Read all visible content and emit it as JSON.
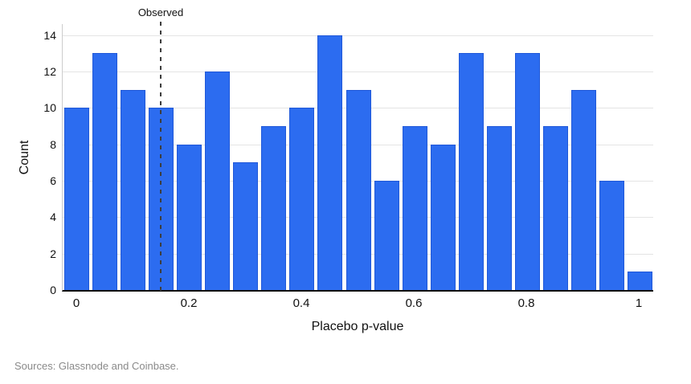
{
  "chart_data": {
    "type": "bar",
    "title": "",
    "xlabel": "Placebo p-value",
    "ylabel": "Count",
    "annotation": {
      "label": "Observed",
      "x": 0.15,
      "style": "dashed-vertical-line"
    },
    "bin_width": 0.05,
    "bin_centers": [
      0,
      0.05,
      0.1,
      0.15,
      0.2,
      0.25,
      0.3,
      0.35,
      0.4,
      0.45,
      0.5,
      0.55,
      0.6,
      0.65,
      0.7,
      0.75,
      0.8,
      0.85,
      0.9,
      0.95,
      1
    ],
    "values": [
      10,
      13,
      11,
      10,
      8,
      12,
      7,
      9,
      10,
      14,
      11,
      6,
      9,
      8,
      13,
      9,
      13,
      9,
      11,
      6,
      1
    ],
    "x_ticks": [
      {
        "value": 0,
        "label": "0"
      },
      {
        "value": 0.2,
        "label": "0.2"
      },
      {
        "value": 0.4,
        "label": "0.4"
      },
      {
        "value": 0.6,
        "label": "0.6"
      },
      {
        "value": 0.8,
        "label": "0.8"
      },
      {
        "value": 1,
        "label": "1"
      }
    ],
    "y_ticks": [
      0,
      2,
      4,
      6,
      8,
      10,
      12,
      14
    ],
    "xlim": [
      -0.025,
      1.025
    ],
    "ylim": [
      0,
      14.6
    ],
    "grid": "horizontal",
    "legend": "none",
    "colors": {
      "bar_fill": "#2c6cf0",
      "bar_border": "#2058d8",
      "gridline": "#e4e4e4",
      "axis_line": "#111111",
      "y_axis_line": "#cccccc",
      "dashed_line": "#3d3d3d",
      "label_text": "#111111",
      "source_text": "#8a8a8a"
    }
  },
  "source_note": "Sources: Glassnode and Coinbase."
}
